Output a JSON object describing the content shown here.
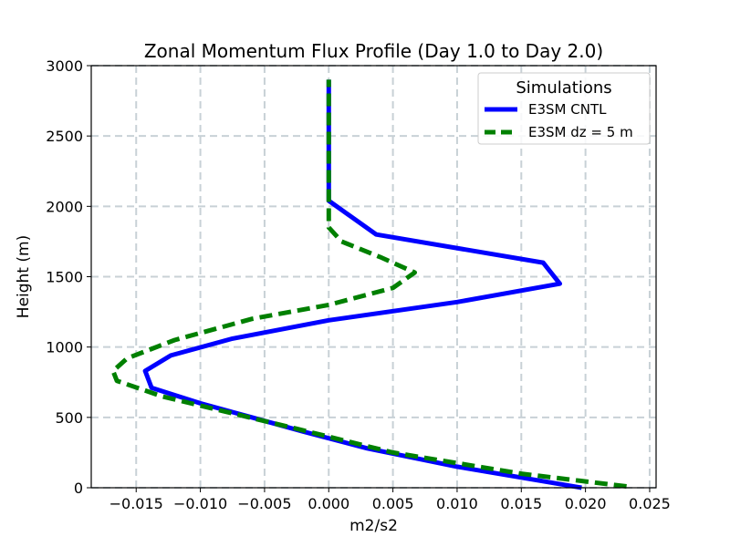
{
  "chart_data": {
    "type": "line",
    "title": "Zonal Momentum Flux Profile (Day 1.0 to Day 2.0)",
    "xlabel": "m2/s2",
    "ylabel": "Height (m)",
    "xlim": [
      -0.0185,
      0.0255
    ],
    "ylim": [
      0,
      3000
    ],
    "xticks": [
      -0.015,
      -0.01,
      -0.005,
      0.0,
      0.005,
      0.01,
      0.015,
      0.02,
      0.025
    ],
    "xtick_labels": [
      "−0.015",
      "−0.010",
      "−0.005",
      "0.000",
      "0.005",
      "0.010",
      "0.015",
      "0.020",
      "0.025"
    ],
    "yticks": [
      0,
      500,
      1000,
      1500,
      2000,
      2500,
      3000
    ],
    "ytick_labels": [
      "0",
      "500",
      "1000",
      "1500",
      "2000",
      "2500",
      "3000"
    ],
    "grid": true,
    "legend": {
      "title": "Simulations",
      "location": "upper right"
    },
    "series": [
      {
        "name": "E3SM CNTL",
        "color": "#0000ff",
        "style": "solid",
        "points": [
          {
            "x": 0.0197,
            "y": 0
          },
          {
            "x": 0.01,
            "y": 150
          },
          {
            "x": 0.003,
            "y": 280
          },
          {
            "x": -0.002,
            "y": 400
          },
          {
            "x": -0.006,
            "y": 500
          },
          {
            "x": -0.01,
            "y": 600
          },
          {
            "x": -0.0138,
            "y": 710
          },
          {
            "x": -0.0143,
            "y": 830
          },
          {
            "x": -0.0123,
            "y": 940
          },
          {
            "x": -0.0075,
            "y": 1060
          },
          {
            "x": 0.0,
            "y": 1190
          },
          {
            "x": 0.01,
            "y": 1320
          },
          {
            "x": 0.018,
            "y": 1450
          },
          {
            "x": 0.0167,
            "y": 1600
          },
          {
            "x": 0.0037,
            "y": 1800
          },
          {
            "x": 0.0,
            "y": 2040
          },
          {
            "x": 0.0,
            "y": 2900
          }
        ]
      },
      {
        "name": "E3SM dz = 5 m",
        "color": "#008000",
        "style": "dashed",
        "points": [
          {
            "x": 0.0232,
            "y": 10
          },
          {
            "x": 0.015,
            "y": 100
          },
          {
            "x": 0.005,
            "y": 250
          },
          {
            "x": -0.003,
            "y": 430
          },
          {
            "x": -0.008,
            "y": 540
          },
          {
            "x": -0.013,
            "y": 650
          },
          {
            "x": -0.0165,
            "y": 760
          },
          {
            "x": -0.0168,
            "y": 830
          },
          {
            "x": -0.0157,
            "y": 920
          },
          {
            "x": -0.012,
            "y": 1050
          },
          {
            "x": -0.006,
            "y": 1200
          },
          {
            "x": 0.0,
            "y": 1300
          },
          {
            "x": 0.005,
            "y": 1420
          },
          {
            "x": 0.0067,
            "y": 1530
          },
          {
            "x": 0.004,
            "y": 1640
          },
          {
            "x": 0.001,
            "y": 1750
          },
          {
            "x": 0.0,
            "y": 1850
          },
          {
            "x": 0.0,
            "y": 2000
          },
          {
            "x": 0.0,
            "y": 2900
          }
        ]
      }
    ]
  }
}
